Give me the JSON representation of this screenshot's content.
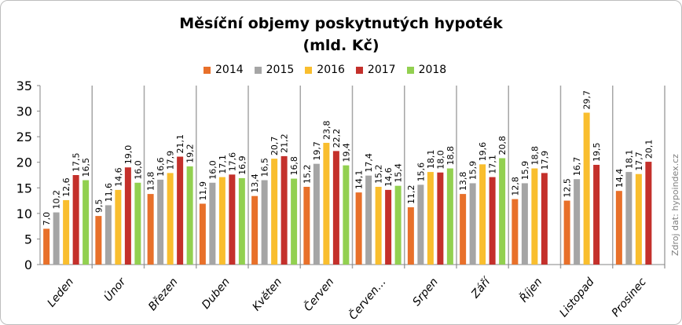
{
  "chart_data": {
    "type": "bar",
    "title": "Měsíční objemy poskytnutých hypoték",
    "subtitle": "(mld. Kč)",
    "categories": [
      "Leden",
      "Únor",
      "Březen",
      "Duben",
      "Květen",
      "Červen",
      "Červen…",
      "Srpen",
      "Září",
      "Říjen",
      "Listopad",
      "Prosinec"
    ],
    "series": [
      {
        "name": "2014",
        "color": "#E8702A",
        "values": [
          7.0,
          9.5,
          13.8,
          11.9,
          13.4,
          15.2,
          14.1,
          11.2,
          13.8,
          12.8,
          12.5,
          14.4
        ]
      },
      {
        "name": "2015",
        "color": "#A5A5A5",
        "values": [
          10.2,
          11.6,
          16.6,
          16.0,
          16.5,
          19.7,
          17.4,
          15.6,
          15.9,
          15.9,
          16.7,
          18.1
        ]
      },
      {
        "name": "2016",
        "color": "#F9BE2E",
        "values": [
          12.6,
          14.6,
          17.9,
          17.1,
          20.7,
          23.8,
          15.2,
          18.1,
          19.6,
          18.8,
          29.7,
          17.7
        ]
      },
      {
        "name": "2017",
        "color": "#C4302B",
        "values": [
          17.5,
          19.0,
          21.1,
          17.6,
          21.2,
          22.2,
          14.6,
          18.0,
          17.1,
          17.9,
          19.5,
          20.1
        ]
      },
      {
        "name": "2018",
        "color": "#92D050",
        "values": [
          16.5,
          16.0,
          19.2,
          16.9,
          16.8,
          19.4,
          15.4,
          18.8,
          20.8,
          null,
          null,
          null
        ]
      }
    ],
    "ylim": [
      0,
      35
    ],
    "yticks": [
      0,
      5,
      10,
      15,
      20,
      25,
      30,
      35
    ],
    "legend_position": "top",
    "grid": "vertical category separators",
    "source": "Zdroj dat: hypoindex.cz"
  }
}
